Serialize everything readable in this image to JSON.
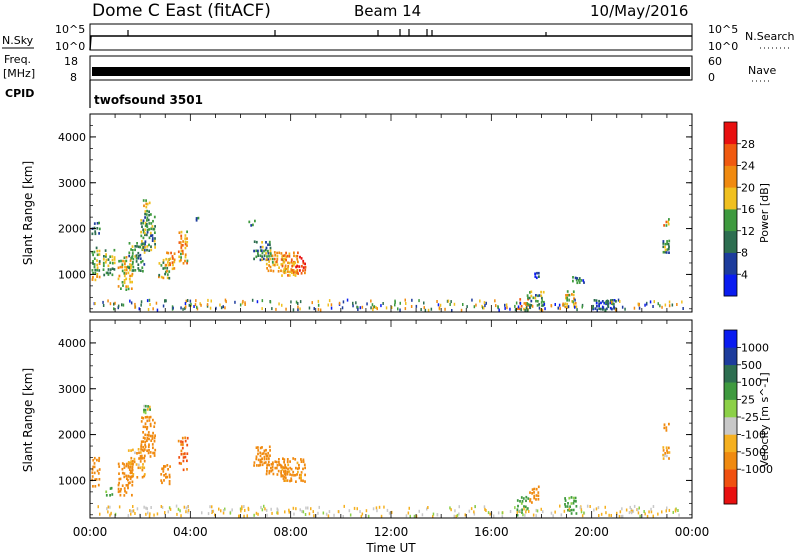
{
  "header": {
    "title": "Dome C East (fitACF)",
    "beam": "Beam 14",
    "date": "10/May/2016"
  },
  "top_panels": {
    "nsky_label": "N.Sky",
    "nsearch_label": "N.Search",
    "noise_ticks_left": [
      "10^5",
      "10^0"
    ],
    "noise_ticks_right": [
      "10^5",
      "10^0"
    ],
    "freq_label_1": "Freq.",
    "freq_label_2": "[MHz]",
    "freq_ticks": [
      "18",
      "8"
    ],
    "nave_label": "Nave",
    "nave_ticks": [
      "60",
      "0"
    ],
    "cpid_label": "CPID",
    "cpid_value": "twofsound 3501"
  },
  "colors": {
    "power_scale": [
      "#0a1cf0",
      "#1d3c9c",
      "#2d6e50",
      "#3f9a3f",
      "#f0c020",
      "#f08a10",
      "#f05a10",
      "#e81010"
    ],
    "velocity_scale": [
      "#e81010",
      "#f05010",
      "#f08a10",
      "#f5b020",
      "#c8c8c8",
      "#8cd048",
      "#3f9a3f",
      "#2d6e50",
      "#1d3c9c",
      "#0a1cf0"
    ]
  },
  "chart_data": [
    {
      "type": "heatmap",
      "name": "power",
      "xlabel": "Time UT",
      "ylabel": "Slant Range [km]",
      "xlim": [
        0,
        24
      ],
      "ylim": [
        180,
        4500
      ],
      "x_ticks": [
        "00:00",
        "04:00",
        "08:00",
        "12:00",
        "16:00",
        "20:00",
        "00:00"
      ],
      "y_ticks": [
        "1000",
        "2000",
        "3000",
        "4000"
      ],
      "colorbar_label": "Power [dB]",
      "colorbar_ticks": [
        "4",
        "8",
        "12",
        "16",
        "20",
        "24",
        "28"
      ],
      "scale": [
        0,
        32
      ],
      "patches": [
        {
          "t0": 0.05,
          "t1": 0.4,
          "r0": 850,
          "r1": 1600,
          "v": 16
        },
        {
          "t0": 0.05,
          "t1": 0.4,
          "r0": 1850,
          "r1": 2150,
          "v": 10
        },
        {
          "t0": 0.5,
          "t1": 1.0,
          "r0": 950,
          "r1": 1550,
          "v": 14
        },
        {
          "t0": 1.1,
          "t1": 1.7,
          "r0": 650,
          "r1": 1400,
          "v": 18
        },
        {
          "t0": 1.5,
          "t1": 2.2,
          "r0": 1050,
          "r1": 1700,
          "v": 12
        },
        {
          "t0": 2.0,
          "t1": 2.6,
          "r0": 1500,
          "r1": 2400,
          "v": 13
        },
        {
          "t0": 2.1,
          "t1": 2.4,
          "r0": 2450,
          "r1": 2650,
          "v": 18
        },
        {
          "t0": 2.7,
          "t1": 3.2,
          "r0": 900,
          "r1": 1350,
          "v": 16
        },
        {
          "t0": 3.0,
          "t1": 3.4,
          "r0": 1100,
          "r1": 1500,
          "v": 22
        },
        {
          "t0": 3.5,
          "t1": 3.9,
          "r0": 1200,
          "r1": 1950,
          "v": 21
        },
        {
          "t0": 4.2,
          "t1": 4.35,
          "r0": 2150,
          "r1": 2250,
          "v": 10
        },
        {
          "t0": 6.3,
          "t1": 6.6,
          "r0": 2050,
          "r1": 2250,
          "v": 10
        },
        {
          "t0": 6.5,
          "t1": 7.2,
          "r0": 1300,
          "r1": 1750,
          "v": 11
        },
        {
          "t0": 7.0,
          "t1": 7.8,
          "r0": 1050,
          "r1": 1500,
          "v": 19
        },
        {
          "t0": 7.6,
          "t1": 8.3,
          "r0": 950,
          "r1": 1500,
          "v": 22
        },
        {
          "t0": 8.0,
          "t1": 8.6,
          "r0": 1000,
          "r1": 1400,
          "v": 25
        },
        {
          "t0": 17.0,
          "t1": 17.5,
          "r0": 220,
          "r1": 480,
          "v": 22
        },
        {
          "t0": 17.4,
          "t1": 18.1,
          "r0": 300,
          "r1": 650,
          "v": 12
        },
        {
          "t0": 17.7,
          "t1": 17.9,
          "r0": 900,
          "r1": 1050,
          "v": 6
        },
        {
          "t0": 18.9,
          "t1": 19.4,
          "r0": 260,
          "r1": 650,
          "v": 18
        },
        {
          "t0": 19.2,
          "t1": 19.7,
          "r0": 780,
          "r1": 950,
          "v": 9
        },
        {
          "t0": 20.0,
          "t1": 21.0,
          "r0": 220,
          "r1": 450,
          "v": 6
        },
        {
          "t0": 22.8,
          "t1": 23.1,
          "r0": 1450,
          "r1": 1750,
          "v": 12
        },
        {
          "t0": 22.85,
          "t1": 23.1,
          "r0": 2050,
          "r1": 2250,
          "v": 19
        }
      ]
    },
    {
      "type": "heatmap",
      "name": "velocity",
      "xlabel": "Time UT",
      "ylabel": "Slant Range [km]",
      "xlim": [
        0,
        24
      ],
      "ylim": [
        180,
        4500
      ],
      "x_ticks": [
        "00:00",
        "04:00",
        "08:00",
        "12:00",
        "16:00",
        "20:00",
        "00:00"
      ],
      "y_ticks": [
        "1000",
        "2000",
        "3000",
        "4000"
      ],
      "colorbar_label": "Velocity [m s^-1]",
      "colorbar_ticks": [
        "1000",
        "500",
        "100",
        "25",
        "-25",
        "-100",
        "-500",
        "-1000"
      ],
      "patches": [
        {
          "t0": 0.05,
          "t1": 0.4,
          "r0": 850,
          "r1": 1600,
          "v": -300
        },
        {
          "t0": 0.6,
          "t1": 0.9,
          "r0": 650,
          "r1": 850,
          "v": 200
        },
        {
          "t0": 1.1,
          "t1": 1.7,
          "r0": 650,
          "r1": 1400,
          "v": -300
        },
        {
          "t0": 1.5,
          "t1": 2.2,
          "r0": 1050,
          "r1": 1700,
          "v": -150
        },
        {
          "t0": 2.0,
          "t1": 2.6,
          "r0": 1500,
          "r1": 2400,
          "v": -250
        },
        {
          "t0": 2.1,
          "t1": 2.4,
          "r0": 2450,
          "r1": 2650,
          "v": 50
        },
        {
          "t0": 2.8,
          "t1": 3.2,
          "r0": 900,
          "r1": 1350,
          "v": -300
        },
        {
          "t0": 3.5,
          "t1": 3.9,
          "r0": 1200,
          "r1": 1950,
          "v": -600
        },
        {
          "t0": 6.5,
          "t1": 7.2,
          "r0": 1300,
          "r1": 1750,
          "v": -300
        },
        {
          "t0": 7.0,
          "t1": 7.8,
          "r0": 1050,
          "r1": 1500,
          "v": -300
        },
        {
          "t0": 7.6,
          "t1": 8.6,
          "r0": 950,
          "r1": 1500,
          "v": -200
        },
        {
          "t0": 17.0,
          "t1": 17.5,
          "r0": 220,
          "r1": 650,
          "v": 200
        },
        {
          "t0": 17.5,
          "t1": 17.9,
          "r0": 500,
          "r1": 900,
          "v": -300
        },
        {
          "t0": 18.9,
          "t1": 19.4,
          "r0": 260,
          "r1": 650,
          "v": 200
        },
        {
          "t0": 22.8,
          "t1": 23.1,
          "r0": 1450,
          "r1": 1750,
          "v": -150
        },
        {
          "t0": 22.85,
          "t1": 23.1,
          "r0": 2050,
          "r1": 2250,
          "v": -300
        }
      ]
    }
  ]
}
